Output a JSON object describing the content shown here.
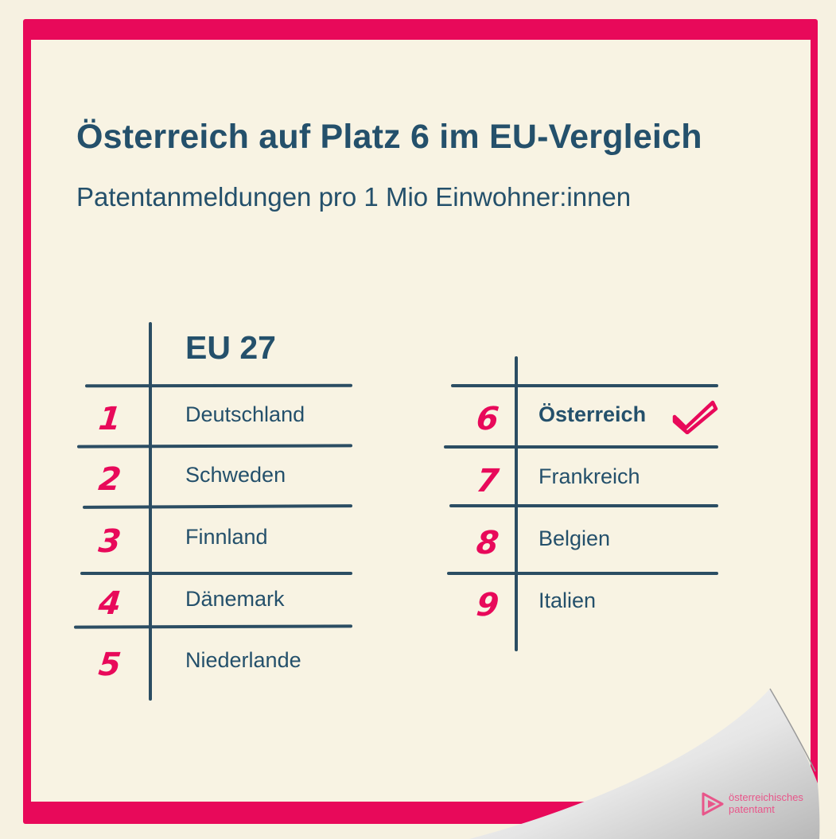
{
  "header": {
    "title": "Österreich auf Platz 6 im EU-Vergleich",
    "subtitle": "Patentanmeldungen pro 1 Mio Einwohner:innen"
  },
  "table": {
    "heading": "EU 27",
    "highlight_rank": "6",
    "highlight_icon": "checkmark-icon",
    "left_rows": [
      {
        "rank": "1",
        "country": "Deutschland"
      },
      {
        "rank": "2",
        "country": "Schweden"
      },
      {
        "rank": "3",
        "country": "Finnland"
      },
      {
        "rank": "4",
        "country": "Dänemark"
      },
      {
        "rank": "5",
        "country": "Niederlande"
      }
    ],
    "right_rows": [
      {
        "rank": "6",
        "country": "Österreich"
      },
      {
        "rank": "7",
        "country": "Frankreich"
      },
      {
        "rank": "8",
        "country": "Belgien"
      },
      {
        "rank": "9",
        "country": "Italien"
      }
    ]
  },
  "logo": {
    "line1": "österreichisches",
    "line2": "patentamt",
    "icon": "play-triangle-logo"
  },
  "colors": {
    "accent": "#e8095a",
    "text": "#24506b",
    "background": "#f8f3e3"
  }
}
